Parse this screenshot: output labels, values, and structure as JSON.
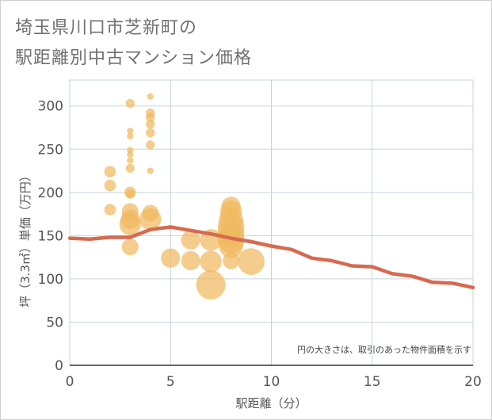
{
  "title_line1": "埼玉県川口市芝新町の",
  "title_line2": "駅距離別中古マンション価格",
  "note": "円の大きさは、取引のあった物件面積を示す",
  "chart_data": {
    "type": "scatter",
    "xlabel": "駅距離（分）",
    "ylabel": "坪（3.3㎡）単価（万円）",
    "xlim": [
      0,
      20
    ],
    "ylim": [
      0,
      330
    ],
    "xticks": [
      0,
      5,
      10,
      15,
      20
    ],
    "yticks": [
      0,
      50,
      100,
      150,
      200,
      250,
      300
    ],
    "grid": true,
    "colors": {
      "bubble": "#f0b860",
      "line": "#d66a50",
      "grid": "#c8d3de"
    },
    "bubbles": [
      {
        "x": 2,
        "y": 224,
        "size": 3
      },
      {
        "x": 2,
        "y": 208,
        "size": 3
      },
      {
        "x": 2,
        "y": 180,
        "size": 3
      },
      {
        "x": 3,
        "y": 303,
        "size": 2
      },
      {
        "x": 3,
        "y": 271,
        "size": 1
      },
      {
        "x": 3,
        "y": 265,
        "size": 1
      },
      {
        "x": 3,
        "y": 249,
        "size": 1
      },
      {
        "x": 3,
        "y": 244,
        "size": 1
      },
      {
        "x": 3,
        "y": 237,
        "size": 1
      },
      {
        "x": 3,
        "y": 228,
        "size": 2
      },
      {
        "x": 3,
        "y": 200,
        "size": 3
      },
      {
        "x": 3,
        "y": 198,
        "size": 2
      },
      {
        "x": 3,
        "y": 178,
        "size": 5
      },
      {
        "x": 3,
        "y": 169,
        "size": 6
      },
      {
        "x": 3,
        "y": 163,
        "size": 7
      },
      {
        "x": 3,
        "y": 137,
        "size": 5
      },
      {
        "x": 4,
        "y": 311,
        "size": 1
      },
      {
        "x": 4,
        "y": 292,
        "size": 2
      },
      {
        "x": 4,
        "y": 287,
        "size": 2
      },
      {
        "x": 4,
        "y": 279,
        "size": 2
      },
      {
        "x": 4,
        "y": 269,
        "size": 2
      },
      {
        "x": 4,
        "y": 255,
        "size": 2
      },
      {
        "x": 4,
        "y": 225,
        "size": 1
      },
      {
        "x": 4,
        "y": 176,
        "size": 5
      },
      {
        "x": 4,
        "y": 169,
        "size": 7
      },
      {
        "x": 5,
        "y": 124,
        "size": 6
      },
      {
        "x": 6,
        "y": 145,
        "size": 6
      },
      {
        "x": 6,
        "y": 121,
        "size": 6
      },
      {
        "x": 7,
        "y": 145,
        "size": 7
      },
      {
        "x": 7,
        "y": 120,
        "size": 7
      },
      {
        "x": 7,
        "y": 93,
        "size": 10
      },
      {
        "x": 8,
        "y": 184,
        "size": 6
      },
      {
        "x": 8,
        "y": 178,
        "size": 7
      },
      {
        "x": 8,
        "y": 168,
        "size": 8
      },
      {
        "x": 8,
        "y": 160,
        "size": 9
      },
      {
        "x": 8,
        "y": 152,
        "size": 9
      },
      {
        "x": 8,
        "y": 145,
        "size": 9
      },
      {
        "x": 8,
        "y": 138,
        "size": 8
      },
      {
        "x": 8,
        "y": 121,
        "size": 5
      },
      {
        "x": 9,
        "y": 120,
        "size": 9
      }
    ],
    "trend": {
      "x": [
        0,
        1,
        2,
        3,
        4,
        5,
        6,
        7,
        8,
        9,
        10,
        11,
        12,
        13,
        14,
        15,
        16,
        17,
        18,
        19,
        20
      ],
      "y": [
        147,
        146,
        148,
        148,
        157,
        160,
        156,
        152,
        147,
        143,
        138,
        134,
        124,
        121,
        115,
        114,
        106,
        103,
        96,
        95,
        90
      ]
    }
  }
}
